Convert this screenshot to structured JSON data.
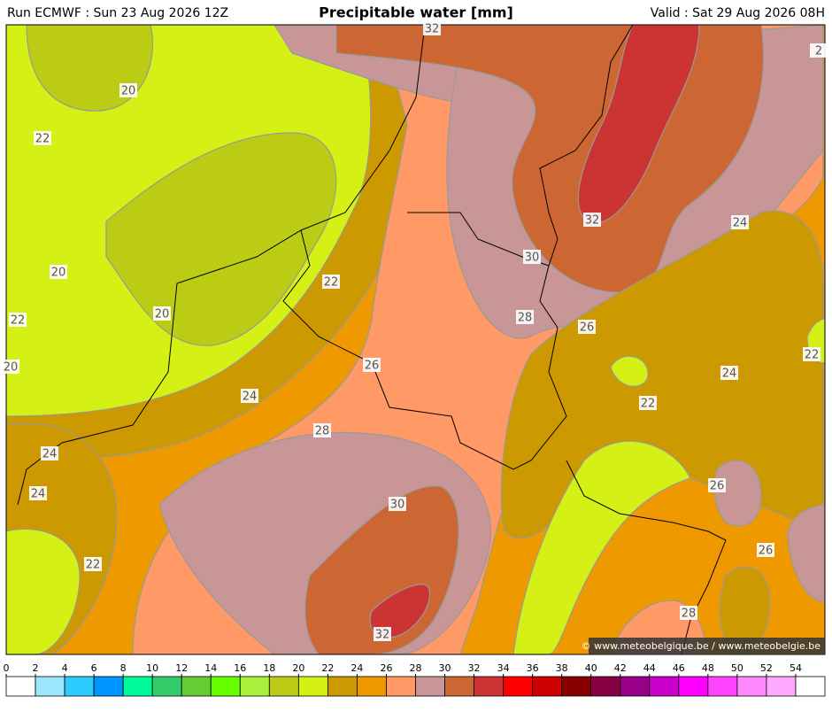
{
  "header": {
    "run": "Run ECMWF : Sun 23 Aug 2026 12Z",
    "title": "Precipitable water [mm]",
    "valid": "Valid : Sat 29 Aug 2026 08H"
  },
  "contour_labels": [
    32,
    20,
    22,
    32,
    24,
    30,
    20,
    22,
    28,
    20,
    22,
    26,
    22,
    20,
    26,
    24,
    24,
    22,
    28,
    24,
    26,
    24,
    30,
    22,
    26,
    28,
    32,
    2
  ],
  "copyright": "© www.meteobelgique.be / www.meteobelgie.be",
  "colorbar": {
    "ticks": [
      0,
      2,
      4,
      6,
      8,
      10,
      12,
      14,
      16,
      18,
      20,
      22,
      24,
      26,
      28,
      30,
      32,
      34,
      36,
      38,
      40,
      42,
      44,
      46,
      48,
      50,
      52,
      54
    ],
    "colors": [
      "#ffffff",
      "#9be8fc",
      "#2ecbff",
      "#0096ff",
      "#00fa9a",
      "#32cd6a",
      "#66cc33",
      "#66ff00",
      "#a8f03c",
      "#bccc14",
      "#d4f014",
      "#cc9900",
      "#ee9900",
      "#ff9966",
      "#c89696",
      "#cc6633",
      "#cc3333",
      "#ff0000",
      "#cc0000",
      "#880000",
      "#880044",
      "#990088",
      "#cc00cc",
      "#ff00ff",
      "#ff44ff",
      "#ff88ff",
      "#ffaaff",
      "#ffffff"
    ]
  }
}
